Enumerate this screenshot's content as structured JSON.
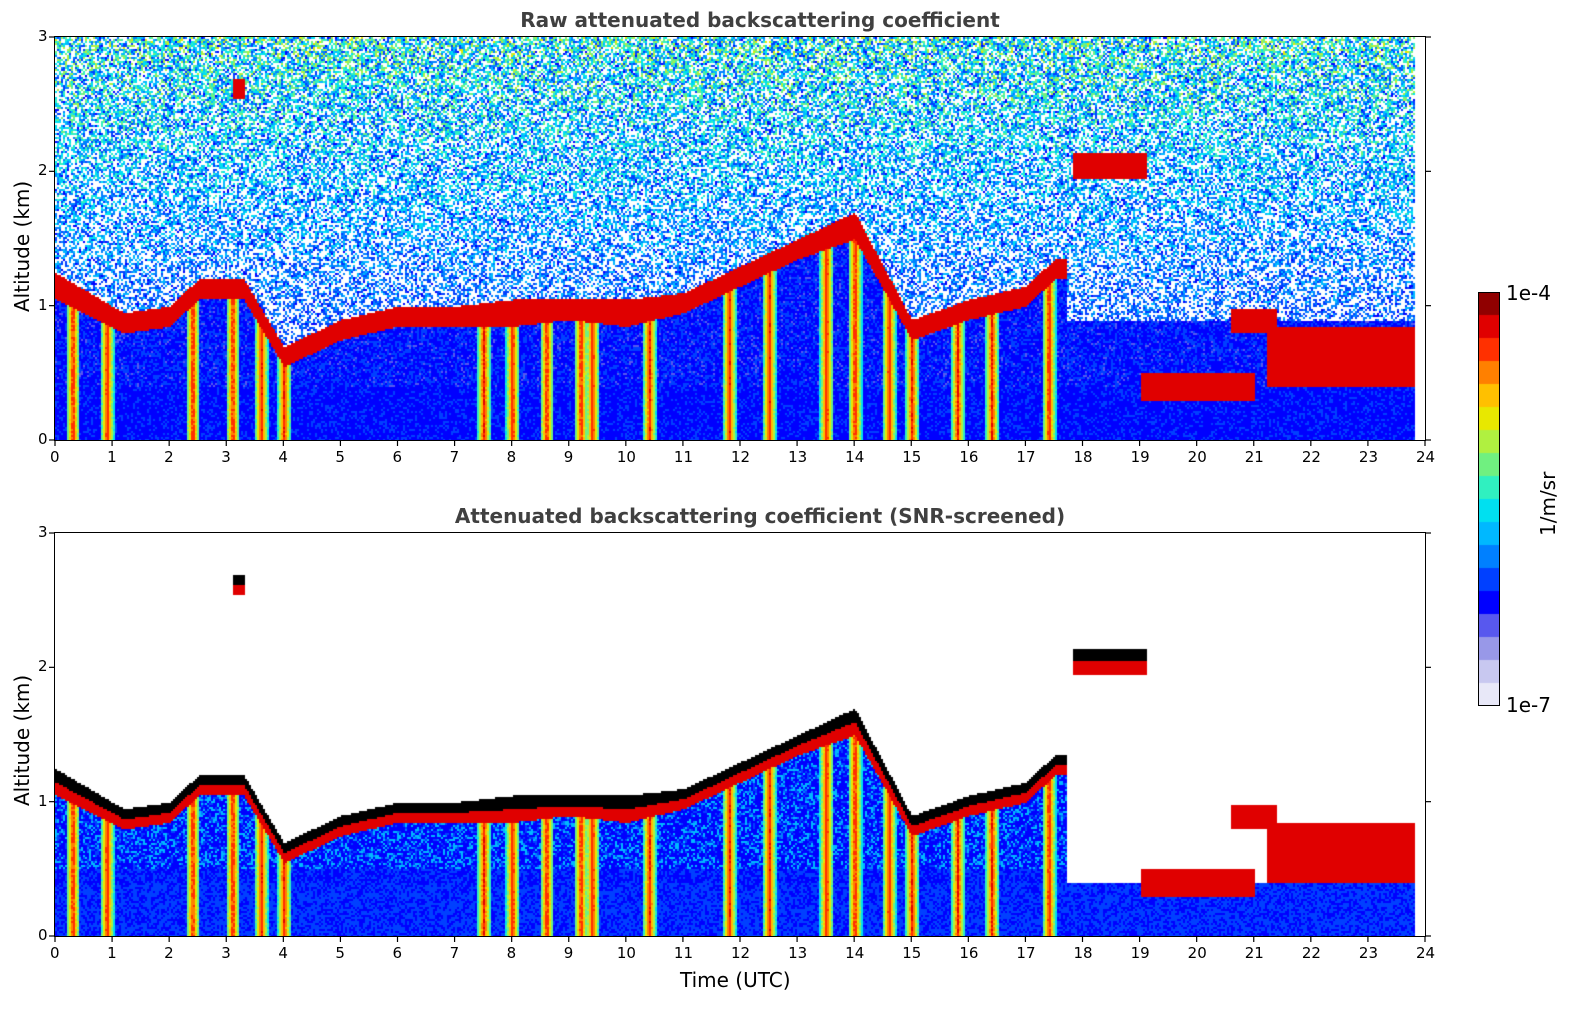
{
  "colors": {
    "colormap": [
      "#e8e8f8",
      "#c8c8f0",
      "#9898e8",
      "#5858ee",
      "#0000ff",
      "#0040ff",
      "#0080ff",
      "#00b8ff",
      "#00e0f0",
      "#30f0c0",
      "#70f080",
      "#b0f040",
      "#e8e800",
      "#ffc000",
      "#ff8000",
      "#ff3000",
      "#e00000",
      "#900000"
    ],
    "saturated_screened": "#000000"
  },
  "chart_data": [
    {
      "type": "heatmap",
      "title": "Raw attenuated backscattering coefficient",
      "xlabel": "",
      "ylabel": "Altitude (km)",
      "xlim": [
        0,
        24
      ],
      "ylim": [
        0,
        3
      ],
      "xticks": [
        "0",
        "1",
        "2",
        "3",
        "4",
        "5",
        "6",
        "7",
        "8",
        "9",
        "10",
        "11",
        "12",
        "13",
        "14",
        "15",
        "16",
        "17",
        "18",
        "19",
        "20",
        "21",
        "22",
        "23",
        "24"
      ],
      "yticks": [
        "0",
        "1",
        "2",
        "3"
      ],
      "data_extent_hours": 23.8,
      "cloud_layer": [
        {
          "t": 0.0,
          "base": 1.05,
          "top": 1.25
        },
        {
          "t": 1.2,
          "base": 0.8,
          "top": 0.95
        },
        {
          "t": 2.0,
          "base": 0.85,
          "top": 1.0
        },
        {
          "t": 2.5,
          "base": 1.05,
          "top": 1.2
        },
        {
          "t": 3.3,
          "base": 1.05,
          "top": 1.2
        },
        {
          "t": 4.0,
          "base": 0.55,
          "top": 0.7
        },
        {
          "t": 5.0,
          "base": 0.75,
          "top": 0.9
        },
        {
          "t": 6.0,
          "base": 0.85,
          "top": 1.0
        },
        {
          "t": 7.0,
          "base": 0.85,
          "top": 1.0
        },
        {
          "t": 8.0,
          "base": 0.85,
          "top": 1.05
        },
        {
          "t": 9.0,
          "base": 0.9,
          "top": 1.05
        },
        {
          "t": 10.0,
          "base": 0.85,
          "top": 1.05
        },
        {
          "t": 11.0,
          "base": 0.95,
          "top": 1.1
        },
        {
          "t": 12.0,
          "base": 1.15,
          "top": 1.3
        },
        {
          "t": 13.0,
          "base": 1.35,
          "top": 1.5
        },
        {
          "t": 14.0,
          "base": 1.5,
          "top": 1.7
        },
        {
          "t": 15.0,
          "base": 0.75,
          "top": 0.9
        },
        {
          "t": 16.0,
          "base": 0.9,
          "top": 1.05
        },
        {
          "t": 17.0,
          "base": 1.0,
          "top": 1.15
        },
        {
          "t": 17.5,
          "base": 1.2,
          "top": 1.35
        }
      ],
      "elevated_layers": [
        {
          "t0": 17.8,
          "t1": 19.1,
          "base": 1.95,
          "top": 2.15
        },
        {
          "t0": 20.6,
          "t1": 21.4,
          "base": 0.8,
          "top": 0.98
        },
        {
          "t0": 21.2,
          "t1": 23.8,
          "base": 0.4,
          "top": 0.85
        },
        {
          "t0": 19.0,
          "t1": 21.0,
          "base": 0.3,
          "top": 0.5
        },
        {
          "t0": 3.1,
          "t1": 3.3,
          "base": 2.55,
          "top": 2.7
        }
      ],
      "rain_shafts_hours": [
        0.3,
        0.9,
        2.4,
        3.1,
        3.6,
        4.0,
        7.5,
        8.0,
        8.6,
        9.2,
        9.4,
        10.4,
        11.8,
        12.5,
        13.5,
        14.0,
        14.6,
        15.0,
        15.8,
        16.4,
        17.4
      ]
    },
    {
      "type": "heatmap",
      "title": "Attenuated backscattering coefficient (SNR-screened)",
      "xlabel": "Time (UTC)",
      "ylabel": "Altitude (km)",
      "xlim": [
        0,
        24
      ],
      "ylim": [
        0,
        3
      ],
      "xticks": [
        "0",
        "1",
        "2",
        "3",
        "4",
        "5",
        "6",
        "7",
        "8",
        "9",
        "10",
        "11",
        "12",
        "13",
        "14",
        "15",
        "16",
        "17",
        "18",
        "19",
        "20",
        "21",
        "22",
        "23",
        "24"
      ],
      "yticks": [
        "0",
        "1",
        "2",
        "3"
      ]
    }
  ],
  "colorbar": {
    "max_label": "1e-4",
    "min_label": "1e-7",
    "unit": "1/m/sr",
    "scale": "log"
  }
}
